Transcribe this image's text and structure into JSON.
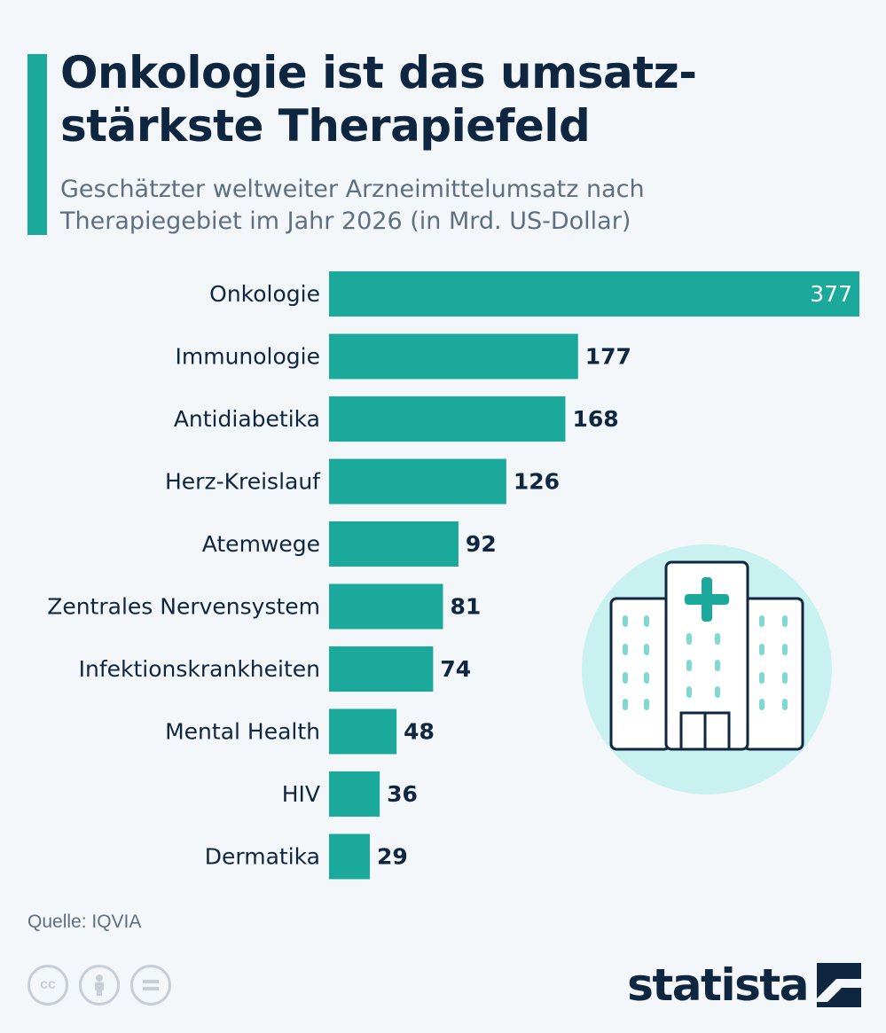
{
  "header": {
    "title": "Onkologie ist das umsatz-stärkste Therapiefeld",
    "title_line1": "Onkologie ist das umsatz-",
    "title_line2": "stärkste Therapiefeld",
    "subtitle_line1": "Geschätzter weltweiter Arzneimittelumsatz nach",
    "subtitle_line2": "Therapiegebiet im Jahr 2026 (in Mrd. US-Dollar)"
  },
  "chart_data": {
    "type": "bar",
    "orientation": "horizontal",
    "categories": [
      "Onkologie",
      "Immunologie",
      "Antidiabetika",
      "Herz-Kreislauf",
      "Atemwege",
      "Zentrales Nervensystem",
      "Infektionskrankheiten",
      "Mental Health",
      "HIV",
      "Dermatika"
    ],
    "values": [
      377,
      177,
      168,
      126,
      92,
      81,
      74,
      48,
      36,
      29
    ],
    "title": "Onkologie ist das umsatz-stärkste Therapiefeld",
    "subtitle": "Geschätzter weltweiter Arzneimittelumsatz nach Therapiegebiet im Jahr 2026 (in Mrd. US-Dollar)",
    "xlim": [
      0,
      377
    ],
    "grid": false,
    "bar_color": "#1aa99a"
  },
  "footer": {
    "source": "Quelle: IQVIA",
    "brand": "statista",
    "license_icons": [
      "cc-icon",
      "attribution-icon",
      "no-derivatives-icon"
    ]
  },
  "colors": {
    "accent": "#1aa99a",
    "text": "#0f2640",
    "muted": "#5e6f80",
    "illustration_bg": "#c9f1f0"
  }
}
